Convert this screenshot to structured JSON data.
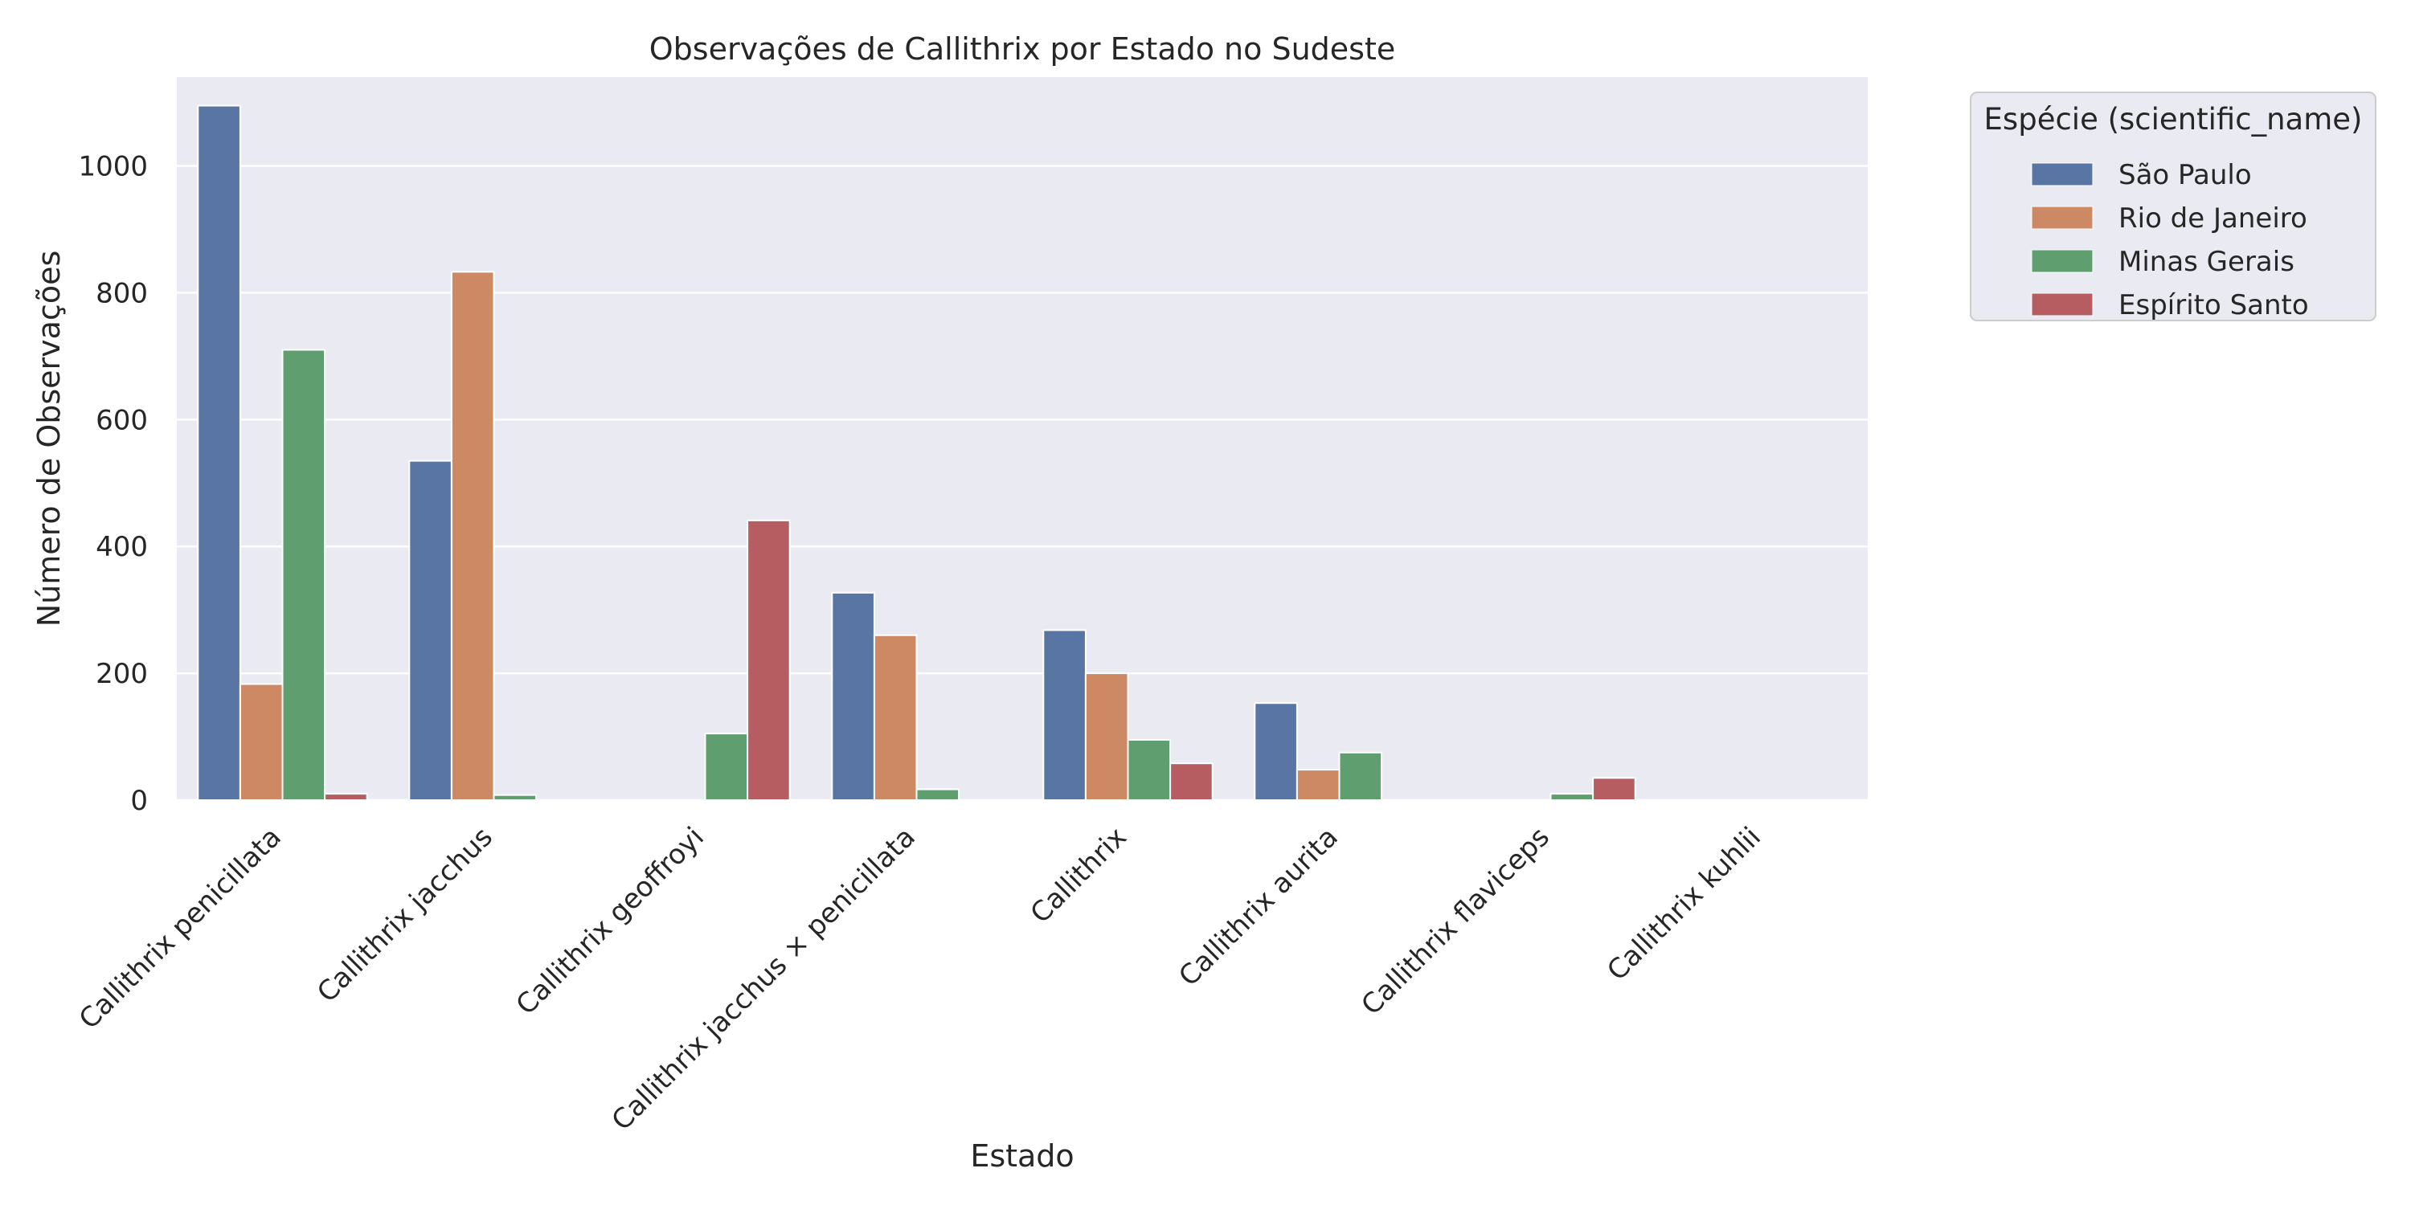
{
  "chart_data": {
    "type": "bar",
    "title": "Observações de Callithrix por Estado no Sudeste",
    "xlabel": "Estado",
    "ylabel": "Número de Observações",
    "ylim": [
      0,
      1140
    ],
    "yticks": [
      0,
      200,
      400,
      600,
      800,
      1000
    ],
    "grid": true,
    "legend": {
      "title": "Espécie (scientific_name)",
      "placement": "outside-top-right"
    },
    "categories": [
      "Callithrix penicillata",
      "Callithrix jacchus",
      "Callithrix geoffroyi",
      "Callithrix jacchus × penicillata",
      "Callithrix",
      "Callithrix aurita",
      "Callithrix flaviceps",
      "Callithrix kuhlii"
    ],
    "series": [
      {
        "name": "São Paulo",
        "color": "#5875a4",
        "values": [
          1095,
          535,
          0,
          327,
          268,
          153,
          0,
          0
        ]
      },
      {
        "name": "Rio de Janeiro",
        "color": "#cc8963",
        "values": [
          183,
          833,
          0,
          260,
          200,
          48,
          0,
          0
        ]
      },
      {
        "name": "Minas Gerais",
        "color": "#5f9e6e",
        "values": [
          710,
          8,
          105,
          17,
          95,
          75,
          10,
          0
        ]
      },
      {
        "name": "Espírito Santo",
        "color": "#b55d60",
        "values": [
          10,
          0,
          441,
          0,
          58,
          0,
          35,
          0
        ]
      }
    ]
  }
}
